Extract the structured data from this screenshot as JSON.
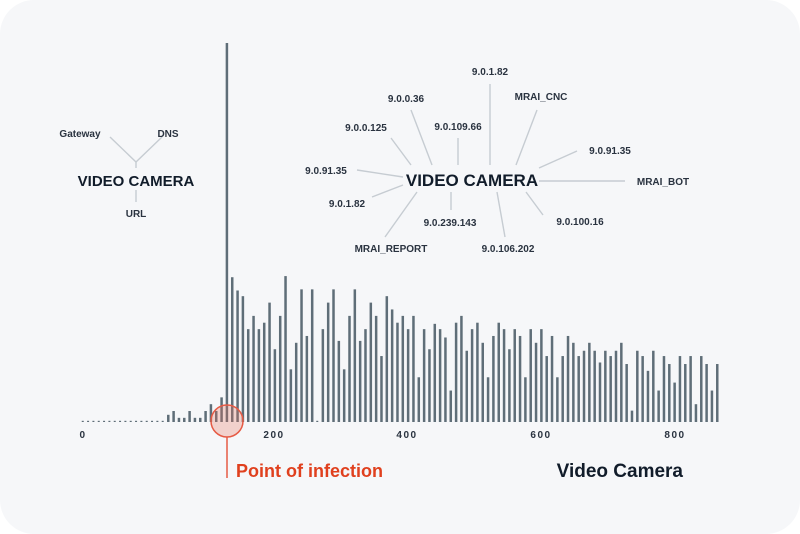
{
  "chart_data": {
    "type": "bar",
    "title": "",
    "xlabel": "",
    "ylabel": "",
    "x_tick_labels": [
      "0",
      "200",
      "400",
      "600",
      "800"
    ],
    "grid": false,
    "bar_color": "#5f6e78",
    "values": [
      0,
      0,
      0,
      0,
      0,
      0,
      0,
      0,
      0,
      0,
      0,
      0,
      0,
      0,
      0,
      0,
      1.9,
      2.9,
      1.1,
      1.1,
      2.9,
      1.1,
      1.1,
      2.9,
      4.7,
      2.9,
      6.5,
      100,
      38.2,
      34.7,
      33.2,
      24.5,
      28,
      24.5,
      26.2,
      31.5,
      19.2,
      28,
      38.5,
      13.9,
      20.9,
      35,
      22.7,
      35,
      0,
      24.5,
      31.5,
      35,
      21.4,
      13.9,
      28,
      35,
      21.4,
      24.5,
      31.5,
      28,
      17.4,
      33.2,
      29.7,
      26.2,
      28,
      24.5,
      28,
      11.8,
      24.5,
      19.2,
      25.9,
      24.5,
      22.3,
      8.3,
      26.2,
      28,
      18.8,
      24.5,
      26.2,
      20.9,
      11.8,
      22.7,
      26.2,
      24.5,
      19.2,
      24.5,
      22.7,
      11.8,
      24.5,
      20.9,
      24.5,
      17.4,
      22.7,
      11.8,
      17.4,
      22.7,
      20.9,
      17.4,
      18.8,
      20.9,
      18.8,
      15.7,
      18.8,
      17.4,
      18.8,
      20.9,
      15.3,
      3,
      18.8,
      17.4,
      13.5,
      18.8,
      8.3,
      17.4,
      15.3,
      10.4,
      17.4,
      15.3,
      17.4,
      4.7,
      17.4,
      15.3,
      8.3,
      15.3
    ],
    "annotation": {
      "label": "Point of infection",
      "color": "#e0401e"
    },
    "series_label": "Video Camera"
  },
  "small_diagram": {
    "hub": "VIDEO CAMERA",
    "nodes": [
      "Gateway",
      "DNS",
      "URL"
    ]
  },
  "large_diagram": {
    "hub": "VIDEO CAMERA",
    "nodes": [
      "9.0.1.82",
      "MRAI_CNC",
      "9.0.0.36",
      "9.0.109.66",
      "9.0.0.125",
      "9.0.91.35",
      "9.0.91.35",
      "MRAI_BOT",
      "9.0.1.82",
      "9.0.239.143",
      "9.0.100.16",
      "MRAI_REPORT",
      "9.0.106.202"
    ]
  }
}
